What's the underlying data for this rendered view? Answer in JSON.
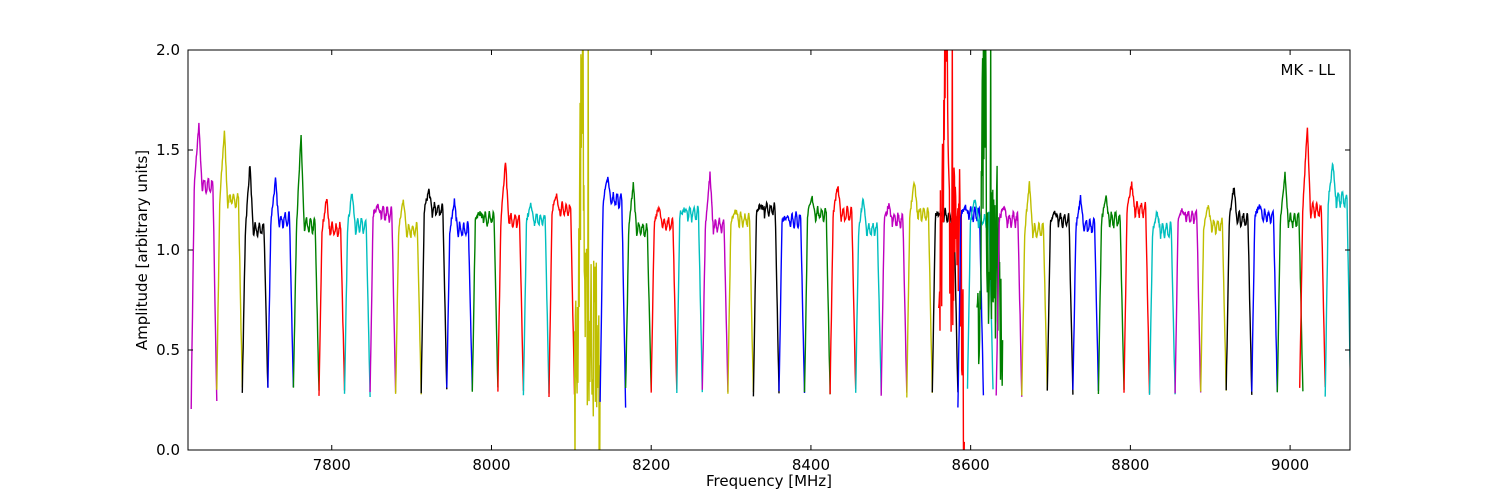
{
  "chart_data": {
    "type": "line",
    "title": "",
    "xlabel": "Frequency [MHz]",
    "ylabel": "Amplitude [arbitrary units]",
    "xlim": [
      7620,
      9075
    ],
    "ylim": [
      0.0,
      2.0
    ],
    "x_ticks": [
      7800,
      8000,
      8200,
      8400,
      8600,
      8800,
      9000
    ],
    "y_ticks": [
      "0.0",
      "0.5",
      "1.0",
      "1.5",
      "2.0"
    ],
    "grid": false,
    "legend": "none",
    "annotation": "MK - LL",
    "channel_width_mhz": 32,
    "first_channel_start_mhz": 7624,
    "color_cycle": [
      "#bf00bf",
      "#bfbf00",
      "#000000",
      "#0000ff",
      "#008000",
      "#ff0000",
      "#00bfbf"
    ],
    "series": [
      {
        "start": 7624,
        "width": 32,
        "color": "#bf00bf",
        "edge_low": 0.22,
        "peak": 1.63,
        "level": 1.32,
        "edge_high": 0.25
      },
      {
        "start": 7656,
        "width": 32,
        "color": "#bfbf00",
        "edge_low": 0.3,
        "peak": 1.6,
        "level": 1.25,
        "edge_high": 0.3
      },
      {
        "start": 7688,
        "width": 32,
        "color": "#000000",
        "edge_low": 0.3,
        "peak": 1.43,
        "level": 1.1,
        "edge_high": 0.31
      },
      {
        "start": 7720,
        "width": 32,
        "color": "#0000ff",
        "edge_low": 0.31,
        "peak": 1.35,
        "level": 1.15,
        "edge_high": 0.31
      },
      {
        "start": 7752,
        "width": 32,
        "color": "#008000",
        "edge_low": 0.31,
        "peak": 1.57,
        "level": 1.12,
        "edge_high": 0.3
      },
      {
        "start": 7784,
        "width": 32,
        "color": "#ff0000",
        "edge_low": 0.28,
        "peak": 1.26,
        "level": 1.1,
        "edge_high": 0.3
      },
      {
        "start": 7816,
        "width": 32,
        "color": "#00bfbf",
        "edge_low": 0.27,
        "peak": 1.29,
        "level": 1.12,
        "edge_high": 0.28
      },
      {
        "start": 7848,
        "width": 32,
        "color": "#bf00bf",
        "edge_low": 0.28,
        "peak": 1.22,
        "level": 1.18,
        "edge_high": 0.28
      },
      {
        "start": 7880,
        "width": 32,
        "color": "#bfbf00",
        "edge_low": 0.28,
        "peak": 1.26,
        "level": 1.1,
        "edge_high": 0.29
      },
      {
        "start": 7912,
        "width": 32,
        "color": "#000000",
        "edge_low": 0.29,
        "peak": 1.3,
        "level": 1.2,
        "edge_high": 0.3
      },
      {
        "start": 7944,
        "width": 32,
        "color": "#0000ff",
        "edge_low": 0.3,
        "peak": 1.25,
        "level": 1.1,
        "edge_high": 0.3
      },
      {
        "start": 7976,
        "width": 32,
        "color": "#008000",
        "edge_low": 0.29,
        "peak": 1.19,
        "level": 1.16,
        "edge_high": 0.3
      },
      {
        "start": 8008,
        "width": 32,
        "color": "#ff0000",
        "edge_low": 0.3,
        "peak": 1.45,
        "level": 1.15,
        "edge_high": 0.29
      },
      {
        "start": 8040,
        "width": 32,
        "color": "#00bfbf",
        "edge_low": 0.28,
        "peak": 1.23,
        "level": 1.15,
        "edge_high": 0.28
      },
      {
        "start": 8072,
        "width": 32,
        "color": "#ff0000",
        "edge_low": 0.28,
        "peak": 1.27,
        "level": 1.2,
        "edge_high": 0.28
      },
      {
        "start": 8104,
        "width": 32,
        "color": "#bfbf00",
        "edge_low": 0.28,
        "peak": 2.0,
        "level": 0.6,
        "edge_high": 0.1,
        "rfi": true
      },
      {
        "start": 8136,
        "width": 32,
        "color": "#0000ff",
        "edge_low": 0.23,
        "peak": 1.36,
        "level": 1.25,
        "edge_high": 0.22
      },
      {
        "start": 8168,
        "width": 32,
        "color": "#008000",
        "edge_low": 0.3,
        "peak": 1.34,
        "level": 1.1,
        "edge_high": 0.3
      },
      {
        "start": 8200,
        "width": 32,
        "color": "#ff0000",
        "edge_low": 0.3,
        "peak": 1.22,
        "level": 1.13,
        "edge_high": 0.3
      },
      {
        "start": 8232,
        "width": 32,
        "color": "#00bfbf",
        "edge_low": 0.3,
        "peak": 1.2,
        "level": 1.18,
        "edge_high": 0.3
      },
      {
        "start": 8264,
        "width": 32,
        "color": "#bf00bf",
        "edge_low": 0.3,
        "peak": 1.38,
        "level": 1.12,
        "edge_high": 0.3
      },
      {
        "start": 8296,
        "width": 32,
        "color": "#bfbf00",
        "edge_low": 0.29,
        "peak": 1.2,
        "level": 1.15,
        "edge_high": 0.28
      },
      {
        "start": 8328,
        "width": 32,
        "color": "#000000",
        "edge_low": 0.28,
        "peak": 1.22,
        "level": 1.2,
        "edge_high": 0.29
      },
      {
        "start": 8360,
        "width": 32,
        "color": "#0000ff",
        "edge_low": 0.28,
        "peak": 1.17,
        "level": 1.15,
        "edge_high": 0.28
      },
      {
        "start": 8392,
        "width": 32,
        "color": "#008000",
        "edge_low": 0.28,
        "peak": 1.26,
        "level": 1.18,
        "edge_high": 0.28
      },
      {
        "start": 8424,
        "width": 32,
        "color": "#ff0000",
        "edge_low": 0.29,
        "peak": 1.32,
        "level": 1.18,
        "edge_high": 0.29
      },
      {
        "start": 8456,
        "width": 32,
        "color": "#00bfbf",
        "edge_low": 0.29,
        "peak": 1.26,
        "level": 1.1,
        "edge_high": 0.29
      },
      {
        "start": 8488,
        "width": 32,
        "color": "#bf00bf",
        "edge_low": 0.28,
        "peak": 1.22,
        "level": 1.15,
        "edge_high": 0.28
      },
      {
        "start": 8520,
        "width": 32,
        "color": "#bfbf00",
        "edge_low": 0.27,
        "peak": 1.34,
        "level": 1.18,
        "edge_high": 0.28
      },
      {
        "start": 8552,
        "width": 32,
        "color": "#000000",
        "edge_low": 0.28,
        "peak": 1.19,
        "level": 1.17,
        "edge_high": 0.28
      },
      {
        "start": 8560,
        "width": 32,
        "color": "#ff0000",
        "edge_low": 0.8,
        "peak": 2.0,
        "level": 1.0,
        "edge_high": 0.15,
        "rfi": true
      },
      {
        "start": 8584,
        "width": 32,
        "color": "#0000ff",
        "edge_low": 0.2,
        "peak": 1.22,
        "level": 1.18,
        "edge_high": 0.26
      },
      {
        "start": 8596,
        "width": 32,
        "color": "#00bfbf",
        "edge_low": 0.3,
        "peak": 1.26,
        "level": 1.15,
        "edge_high": 0.3
      },
      {
        "start": 8608,
        "width": 32,
        "color": "#008000",
        "edge_low": 0.3,
        "peak": 2.0,
        "level": 1.0,
        "edge_high": 0.22,
        "rfi": true
      },
      {
        "start": 8632,
        "width": 32,
        "color": "#bf00bf",
        "edge_low": 0.26,
        "peak": 1.22,
        "level": 1.15,
        "edge_high": 0.28
      },
      {
        "start": 8664,
        "width": 32,
        "color": "#bfbf00",
        "edge_low": 0.28,
        "peak": 1.34,
        "level": 1.1,
        "edge_high": 0.29
      },
      {
        "start": 8696,
        "width": 32,
        "color": "#000000",
        "edge_low": 0.29,
        "peak": 1.19,
        "level": 1.15,
        "edge_high": 0.29
      },
      {
        "start": 8728,
        "width": 32,
        "color": "#0000ff",
        "edge_low": 0.29,
        "peak": 1.26,
        "level": 1.12,
        "edge_high": 0.29
      },
      {
        "start": 8760,
        "width": 32,
        "color": "#008000",
        "edge_low": 0.29,
        "peak": 1.26,
        "level": 1.15,
        "edge_high": 0.29
      },
      {
        "start": 8792,
        "width": 32,
        "color": "#ff0000",
        "edge_low": 0.28,
        "peak": 1.33,
        "level": 1.2,
        "edge_high": 0.28
      },
      {
        "start": 8824,
        "width": 32,
        "color": "#00bfbf",
        "edge_low": 0.28,
        "peak": 1.19,
        "level": 1.1,
        "edge_high": 0.28
      },
      {
        "start": 8856,
        "width": 32,
        "color": "#bf00bf",
        "edge_low": 0.28,
        "peak": 1.2,
        "level": 1.17,
        "edge_high": 0.28
      },
      {
        "start": 8888,
        "width": 32,
        "color": "#bfbf00",
        "edge_low": 0.29,
        "peak": 1.22,
        "level": 1.12,
        "edge_high": 0.29
      },
      {
        "start": 8920,
        "width": 32,
        "color": "#000000",
        "edge_low": 0.29,
        "peak": 1.32,
        "level": 1.15,
        "edge_high": 0.29
      },
      {
        "start": 8952,
        "width": 32,
        "color": "#0000ff",
        "edge_low": 0.29,
        "peak": 1.22,
        "level": 1.17,
        "edge_high": 0.29
      },
      {
        "start": 8984,
        "width": 32,
        "color": "#008000",
        "edge_low": 0.3,
        "peak": 1.38,
        "level": 1.15,
        "edge_high": 0.3
      },
      {
        "start": 9012,
        "width": 32,
        "color": "#ff0000",
        "edge_low": 0.3,
        "peak": 1.62,
        "level": 1.2,
        "edge_high": 0.3
      },
      {
        "start": 9044,
        "width": 32,
        "color": "#00bfbf",
        "edge_low": 0.27,
        "peak": 1.44,
        "level": 1.25,
        "edge_high": 0.26
      }
    ]
  }
}
